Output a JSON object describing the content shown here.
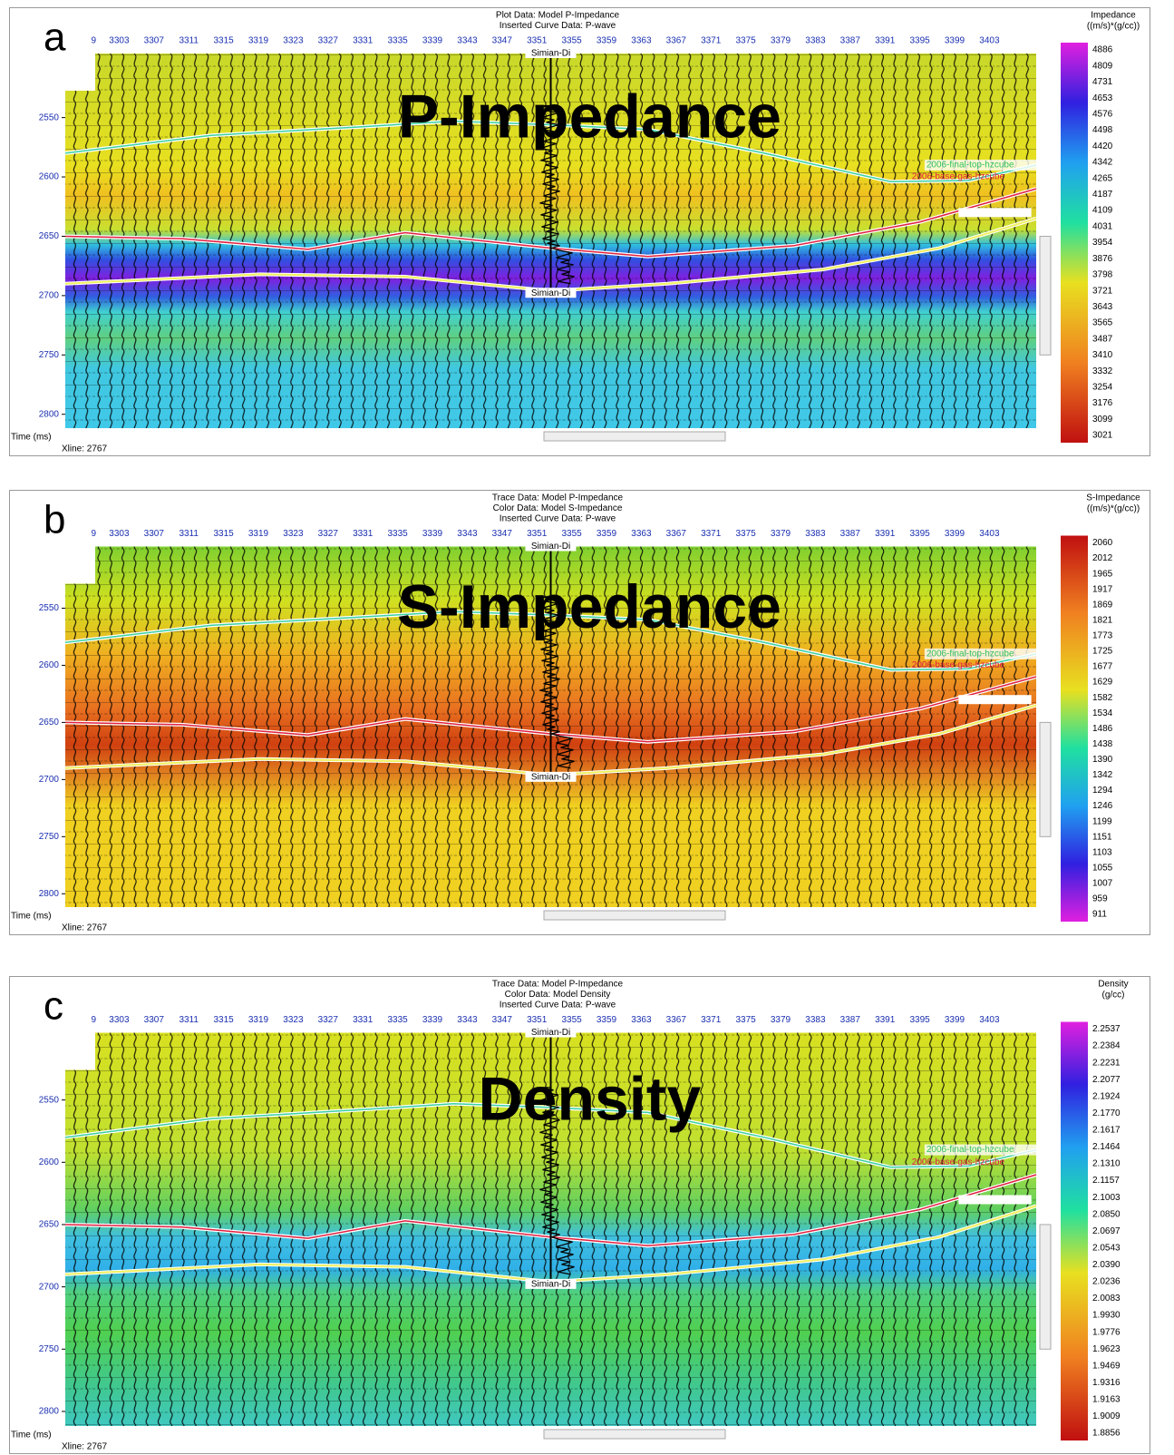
{
  "axes": {
    "xlines": [
      9,
      3303,
      3307,
      3311,
      3315,
      3319,
      3323,
      3327,
      3331,
      3335,
      3339,
      3343,
      3347,
      3351,
      3355,
      3359,
      3363,
      3367,
      3371,
      3375,
      3379,
      3383,
      3387,
      3391,
      3395,
      3399,
      3403
    ],
    "times": [
      2550,
      2600,
      2650,
      2700,
      2750,
      2800
    ],
    "time_label": "Time (ms)",
    "xline_info": "Xline: 2767",
    "well": "Simian-Di",
    "horizons": [
      "2006-final-top-hzcube",
      "2006-base-gas-hzcube"
    ]
  },
  "panels": [
    {
      "letter": "a",
      "title_lines": [
        "Plot Data: Model P-Impedance",
        "Inserted Curve Data: P-wave"
      ],
      "overlay_label": "P-Impedance",
      "colorbar": {
        "title": "Impedance",
        "unit": "((m/s)*(g/cc))",
        "labels": [
          "4886",
          "4809",
          "4731",
          "4653",
          "4576",
          "4498",
          "4420",
          "4342",
          "4265",
          "4187",
          "4109",
          "4031",
          "3954",
          "3876",
          "3798",
          "3721",
          "3643",
          "3565",
          "3487",
          "3410",
          "3332",
          "3254",
          "3176",
          "3099",
          "3021"
        ]
      }
    },
    {
      "letter": "b",
      "title_lines": [
        "Trace Data: Model P-Impedance",
        "Color Data: Model S-Impedance",
        "Inserted Curve Data: P-wave"
      ],
      "overlay_label": "S-Impedance",
      "colorbar": {
        "title": "S-Impedance",
        "unit": "((m/s)*(g/cc))",
        "labels": [
          "2060",
          "2012",
          "1965",
          "1917",
          "1869",
          "1821",
          "1773",
          "1725",
          "1677",
          "1629",
          "1582",
          "1534",
          "1486",
          "1438",
          "1390",
          "1342",
          "1294",
          "1246",
          "1199",
          "1151",
          "1103",
          "1055",
          "1007",
          "959",
          "911"
        ]
      }
    },
    {
      "letter": "c",
      "title_lines": [
        "Trace Data: Model P-Impedance",
        "Color Data: Model Density",
        "Inserted Curve Data: P-wave"
      ],
      "overlay_label": "Density",
      "colorbar": {
        "title": "Density",
        "unit": "(g/cc)",
        "labels": [
          "2.2537",
          "2.2384",
          "2.2231",
          "2.2077",
          "2.1924",
          "2.1770",
          "2.1617",
          "2.1464",
          "2.1310",
          "2.1157",
          "2.1003",
          "2.0850",
          "2.0697",
          "2.0543",
          "2.0390",
          "2.0236",
          "2.0083",
          "1.9930",
          "1.9776",
          "1.9623",
          "1.9469",
          "1.9316",
          "1.9163",
          "1.9009",
          "1.8856"
        ]
      }
    }
  ]
}
